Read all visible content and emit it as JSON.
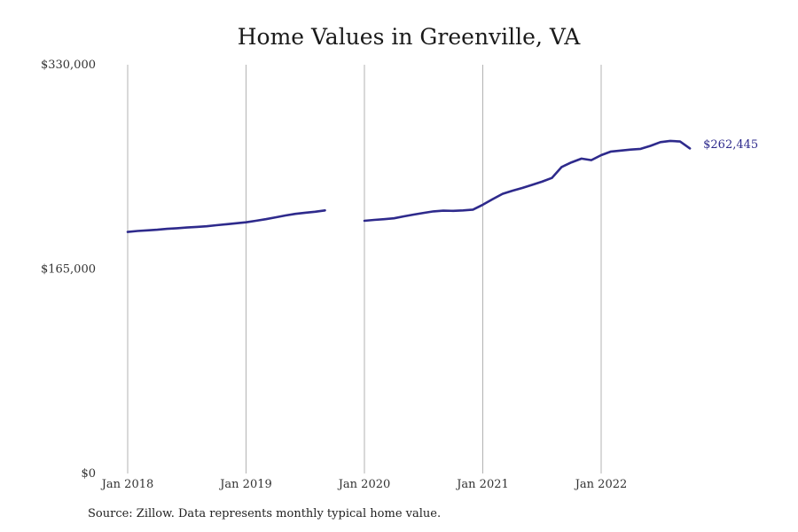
{
  "chart_data": {
    "type": "line",
    "title": "Home Values in Greenville, VA",
    "xlabel": "",
    "ylabel": "",
    "ylim": [
      0,
      330000
    ],
    "y_ticks": [
      "$330,000",
      "$165,000",
      "$0"
    ],
    "y_tick_values": [
      330000,
      165000,
      0
    ],
    "x_ticks": [
      "Jan 2018",
      "Jan 2019",
      "Jan 2020",
      "Jan 2021",
      "Jan 2022"
    ],
    "x_tick_dates": [
      "2018-01",
      "2019-01",
      "2020-01",
      "2021-01",
      "2022-01"
    ],
    "grid": "vertical",
    "line_color": "#2e2a8c",
    "end_label": "$262,445",
    "segments": [
      [
        {
          "x": "2018-01",
          "y": 195000
        },
        {
          "x": "2018-02",
          "y": 195800
        },
        {
          "x": "2018-03",
          "y": 196300
        },
        {
          "x": "2018-04",
          "y": 196800
        },
        {
          "x": "2018-05",
          "y": 197500
        },
        {
          "x": "2018-06",
          "y": 198000
        },
        {
          "x": "2018-07",
          "y": 198600
        },
        {
          "x": "2018-08",
          "y": 199100
        },
        {
          "x": "2018-09",
          "y": 199600
        },
        {
          "x": "2018-10",
          "y": 200400
        },
        {
          "x": "2018-11",
          "y": 201200
        },
        {
          "x": "2018-12",
          "y": 202000
        },
        {
          "x": "2019-01",
          "y": 202800
        },
        {
          "x": "2019-02",
          "y": 204000
        },
        {
          "x": "2019-03",
          "y": 205300
        },
        {
          "x": "2019-04",
          "y": 206800
        },
        {
          "x": "2019-05",
          "y": 208300
        },
        {
          "x": "2019-06",
          "y": 209600
        },
        {
          "x": "2019-07",
          "y": 210500
        },
        {
          "x": "2019-08",
          "y": 211300
        },
        {
          "x": "2019-09",
          "y": 212400
        }
      ],
      [
        {
          "x": "2020-01",
          "y": 204000
        },
        {
          "x": "2020-02",
          "y": 204700
        },
        {
          "x": "2020-03",
          "y": 205300
        },
        {
          "x": "2020-04",
          "y": 206000
        },
        {
          "x": "2020-05",
          "y": 207600
        },
        {
          "x": "2020-06",
          "y": 209000
        },
        {
          "x": "2020-07",
          "y": 210400
        },
        {
          "x": "2020-08",
          "y": 211600
        },
        {
          "x": "2020-09",
          "y": 212200
        },
        {
          "x": "2020-10",
          "y": 212000
        },
        {
          "x": "2020-11",
          "y": 212400
        },
        {
          "x": "2020-12",
          "y": 213000
        },
        {
          "x": "2021-01",
          "y": 217000
        },
        {
          "x": "2021-02",
          "y": 221500
        },
        {
          "x": "2021-03",
          "y": 225800
        },
        {
          "x": "2021-04",
          "y": 228300
        },
        {
          "x": "2021-05",
          "y": 230500
        },
        {
          "x": "2021-06",
          "y": 233000
        },
        {
          "x": "2021-07",
          "y": 235600
        },
        {
          "x": "2021-08",
          "y": 238600
        },
        {
          "x": "2021-09",
          "y": 247500
        },
        {
          "x": "2021-10",
          "y": 251200
        },
        {
          "x": "2021-11",
          "y": 254200
        },
        {
          "x": "2021-12",
          "y": 253000
        },
        {
          "x": "2022-01",
          "y": 257000
        },
        {
          "x": "2022-02",
          "y": 259900
        },
        {
          "x": "2022-03",
          "y": 260700
        },
        {
          "x": "2022-04",
          "y": 261500
        },
        {
          "x": "2022-05",
          "y": 262100
        },
        {
          "x": "2022-06",
          "y": 264500
        },
        {
          "x": "2022-07",
          "y": 267500
        },
        {
          "x": "2022-08",
          "y": 268500
        },
        {
          "x": "2022-09",
          "y": 268000
        },
        {
          "x": "2022-10",
          "y": 262445
        }
      ]
    ]
  },
  "source_note": "Source: Zillow. Data represents monthly typical home value."
}
